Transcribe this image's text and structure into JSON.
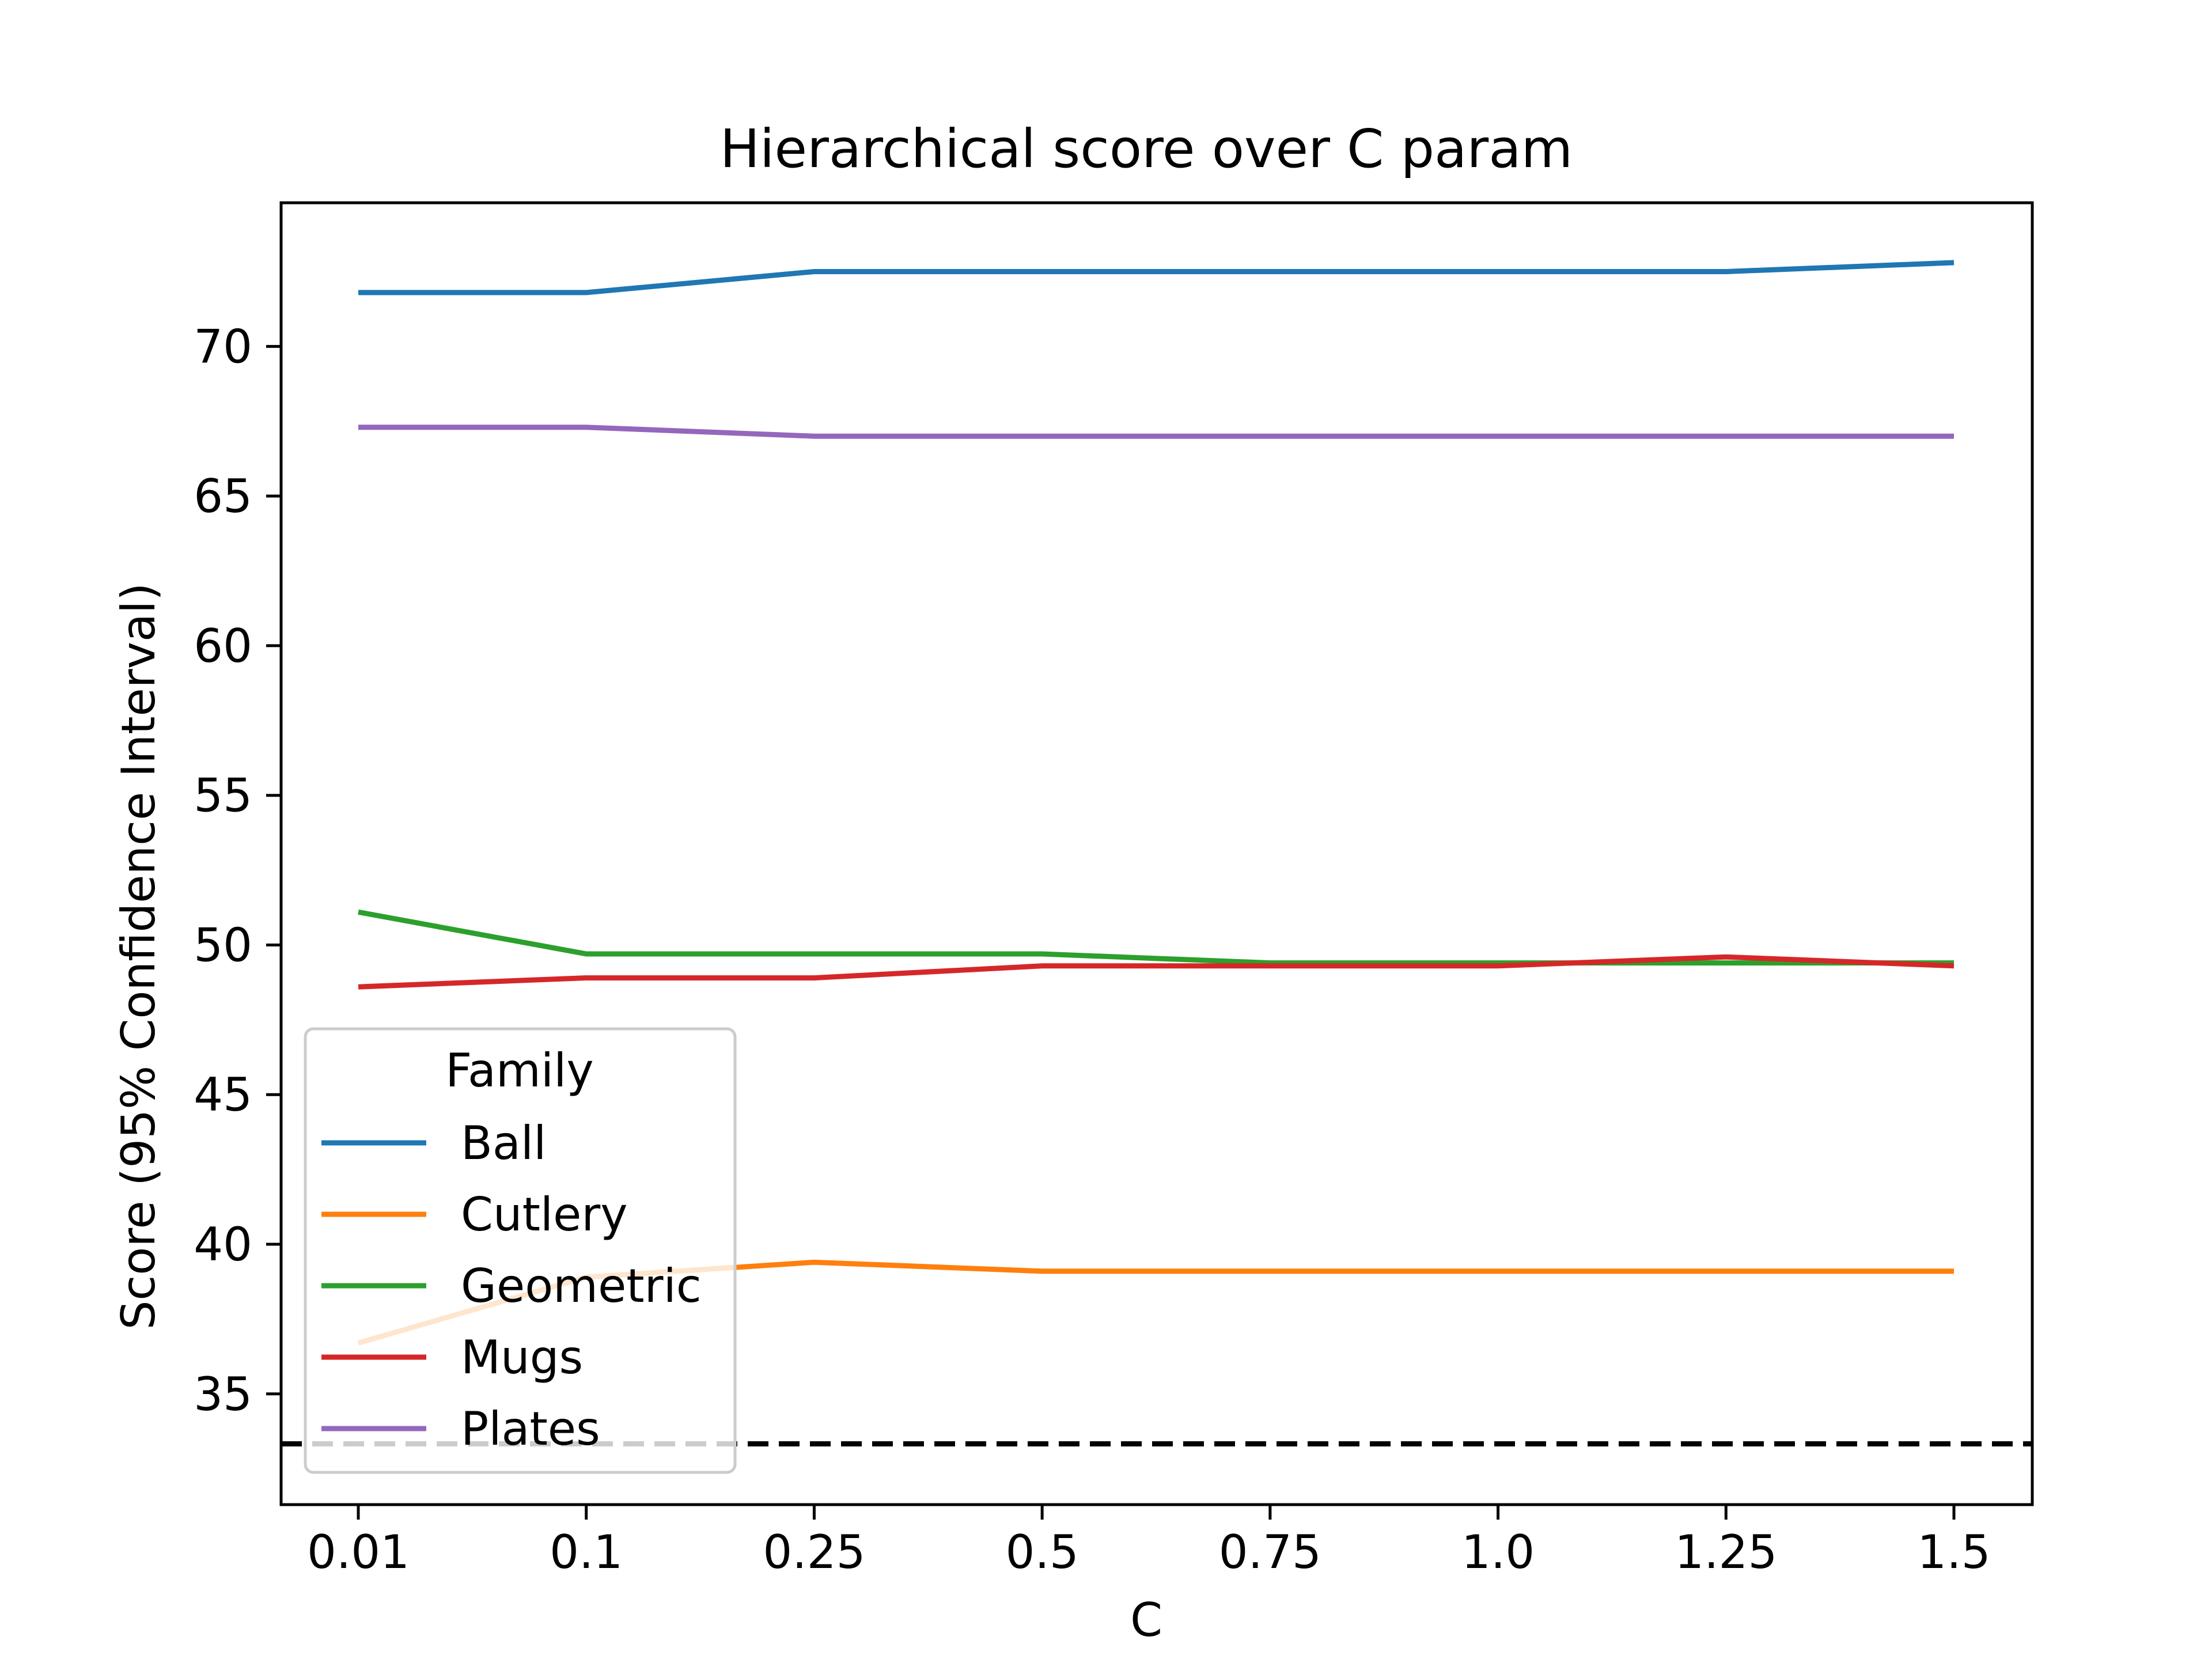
{
  "chart_data": {
    "type": "line",
    "title": "Hierarchical score over C param",
    "xlabel": "C",
    "ylabel": "Score (95% Confidence Interval)",
    "categories": [
      "0.01",
      "0.1",
      "0.25",
      "0.5",
      "0.75",
      "1.0",
      "1.25",
      "1.5"
    ],
    "ylim": [
      31.3,
      74.8
    ],
    "yticks": [
      35,
      40,
      45,
      50,
      55,
      60,
      65,
      70
    ],
    "grid": false,
    "legend": {
      "title": "Family",
      "placement": "lower-left"
    },
    "series": [
      {
        "name": "Ball",
        "color": "#1f77b4",
        "values": [
          71.8,
          71.8,
          72.5,
          72.5,
          72.5,
          72.5,
          72.5,
          72.8
        ]
      },
      {
        "name": "Cutlery",
        "color": "#ff7f0e",
        "values": [
          36.7,
          38.9,
          39.4,
          39.1,
          39.1,
          39.1,
          39.1,
          39.1
        ]
      },
      {
        "name": "Geometric",
        "color": "#2ca02c",
        "values": [
          51.1,
          49.7,
          49.7,
          49.7,
          49.4,
          49.4,
          49.4,
          49.4
        ]
      },
      {
        "name": "Mugs",
        "color": "#d62728",
        "values": [
          48.6,
          48.9,
          48.9,
          49.3,
          49.3,
          49.3,
          49.6,
          49.3
        ]
      },
      {
        "name": "Plates",
        "color": "#9467bd",
        "values": [
          67.3,
          67.3,
          67.0,
          67.0,
          67.0,
          67.0,
          67.0,
          67.0
        ]
      }
    ],
    "reference_line": {
      "value": 33.33,
      "color": "#000000",
      "style": "dashed"
    }
  }
}
